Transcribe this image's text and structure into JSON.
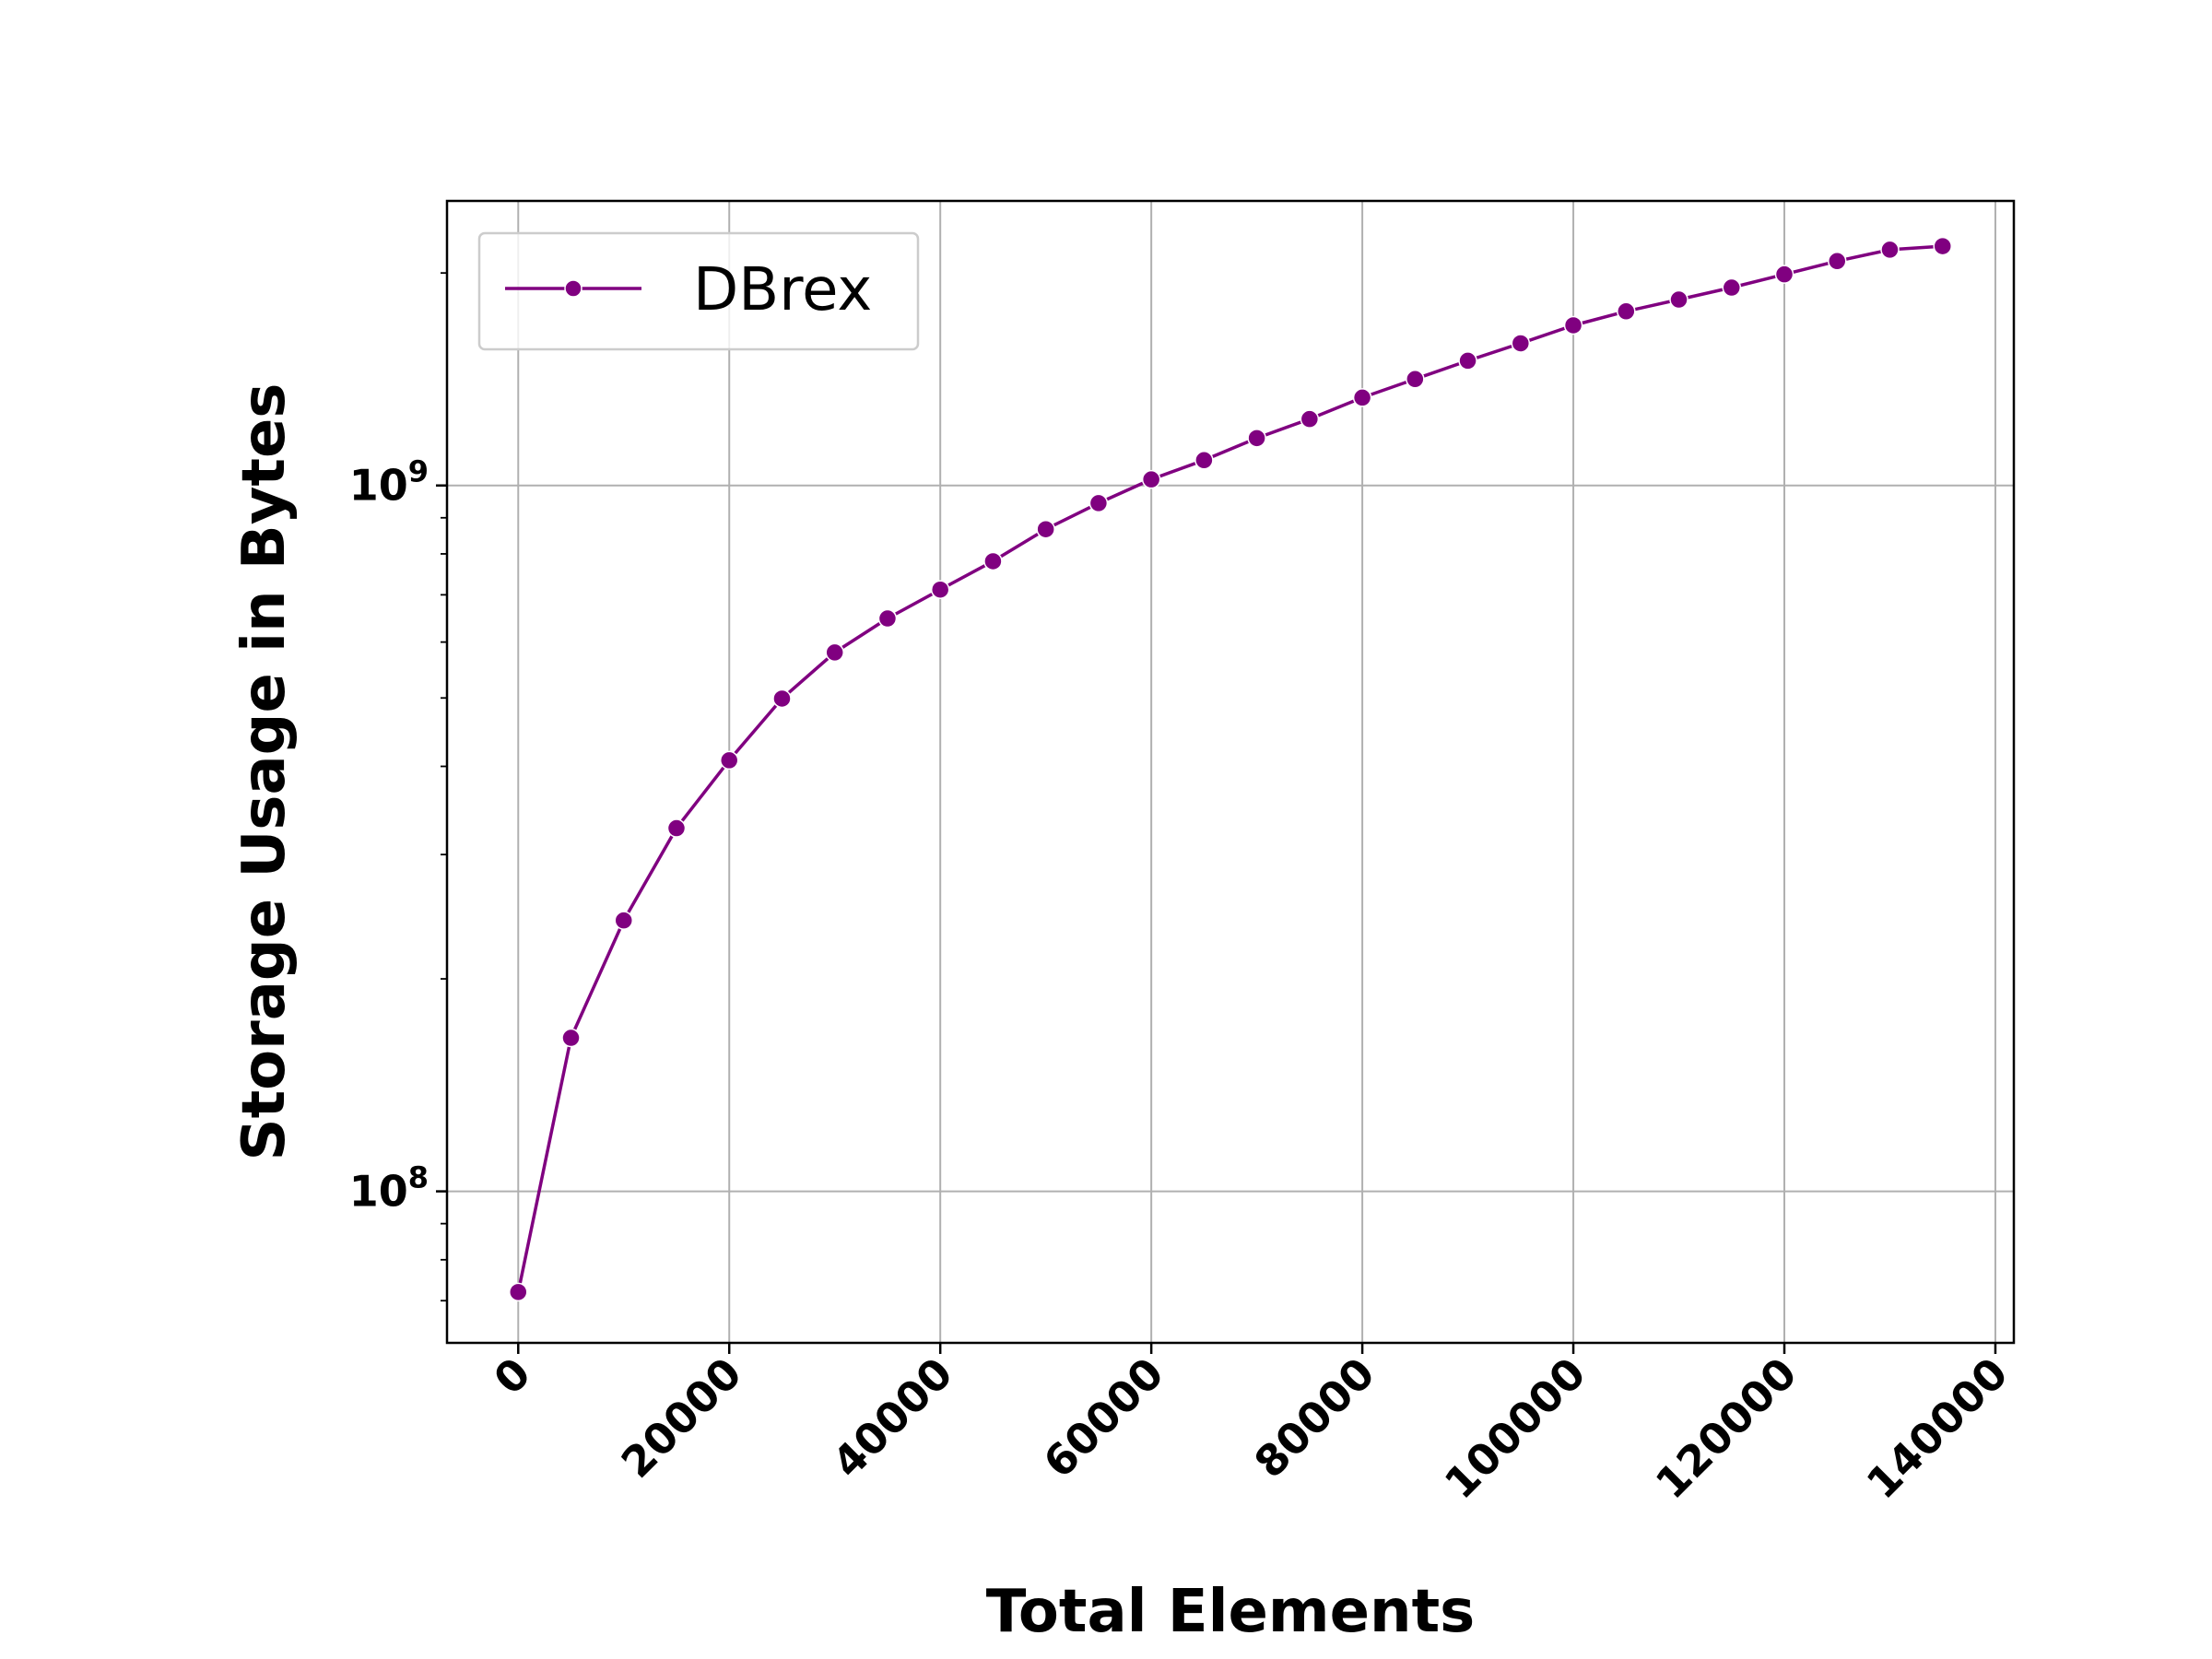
{
  "chart_data": {
    "type": "line",
    "title": "",
    "xlabel": "Total Elements",
    "ylabel": "Storage Usage in Bytes",
    "yscale": "log",
    "xlim": [
      -6750,
      141750
    ],
    "ylim": [
      61000000,
      2530000000
    ],
    "grid": true,
    "legend_position": "top-left",
    "colors": {
      "series": "#800080",
      "grid": "#b0b0b0",
      "axes": "#000000"
    },
    "x_ticks": [
      0,
      20000,
      40000,
      60000,
      80000,
      100000,
      120000,
      140000
    ],
    "x_tick_labels": [
      "0",
      "20000",
      "40000",
      "60000",
      "80000",
      "100000",
      "120000",
      "140000"
    ],
    "y_ticks": [
      100000000,
      1000000000
    ],
    "y_tick_labels": [
      {
        "base": "10",
        "exp": "8"
      },
      {
        "base": "10",
        "exp": "9"
      }
    ],
    "x": [
      0,
      5000,
      10000,
      15000,
      20000,
      25000,
      30000,
      35000,
      40000,
      45000,
      50000,
      55000,
      60000,
      65000,
      70000,
      75000,
      80000,
      85000,
      90000,
      95000,
      100000,
      105000,
      110000,
      115000,
      120000,
      125000,
      130000,
      135000
    ],
    "series": [
      {
        "name": "DBrex",
        "values": [
          72000000,
          165000000,
          242000000,
          327000000,
          408000000,
          499000000,
          580000000,
          648000000,
          712000000,
          781000000,
          867000000,
          944000000,
          1020000000,
          1086000000,
          1167000000,
          1242000000,
          1332000000,
          1415000000,
          1502000000,
          1590000000,
          1686000000,
          1765000000,
          1834000000,
          1907000000,
          1991000000,
          2079000000,
          2158000000,
          2183000000
        ]
      }
    ]
  }
}
